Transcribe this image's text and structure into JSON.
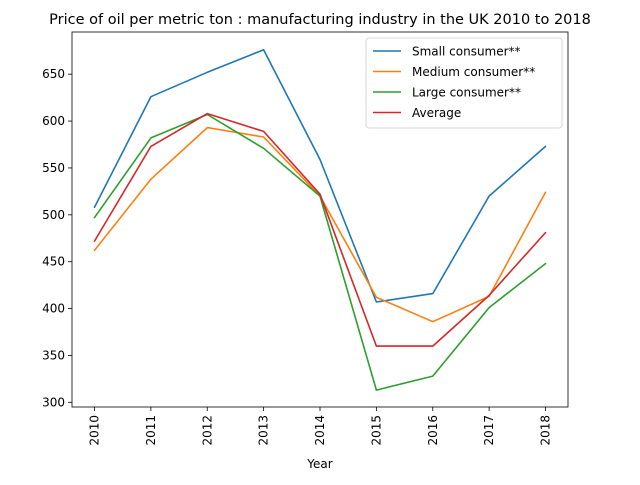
{
  "chart_data": {
    "type": "line",
    "title": "Price of oil per metric ton : manufacturing industry in the UK 2010 to 2018",
    "xlabel": "Year",
    "ylabel": "",
    "categories": [
      "2010",
      "2011",
      "2012",
      "2013",
      "2014",
      "2015",
      "2016",
      "2017",
      "2018"
    ],
    "ylim": [
      295,
      695
    ],
    "yticks": [
      300,
      350,
      400,
      450,
      500,
      550,
      600,
      650
    ],
    "grid": false,
    "legend_position": "top-right",
    "series": [
      {
        "name": "Small consumer**",
        "color": "#1f77b4",
        "values": [
          508,
          626,
          652,
          676,
          559,
          407,
          416,
          520,
          573
        ]
      },
      {
        "name": "Medium consumer**",
        "color": "#ff7f0e",
        "values": [
          462,
          538,
          593,
          583,
          520,
          412,
          386,
          413,
          524
        ]
      },
      {
        "name": "Large consumer**",
        "color": "#2ca02c",
        "values": [
          497,
          582,
          607,
          571,
          520,
          313,
          328,
          401,
          448
        ]
      },
      {
        "name": "Average",
        "color": "#d62728",
        "values": [
          472,
          573,
          608,
          589,
          522,
          360,
          360,
          414,
          481
        ]
      }
    ]
  }
}
